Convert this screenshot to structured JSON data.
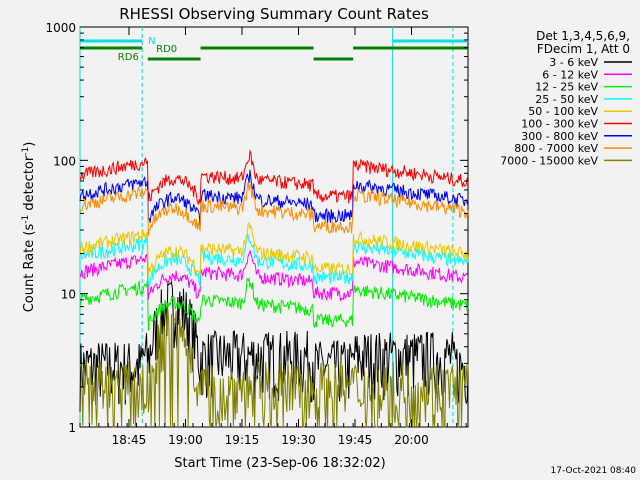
{
  "chart_data": {
    "type": "line",
    "title": "RHESSI Observing Summary Count Rates",
    "xlabel": "Start Time (23-Sep-06 18:32:02)",
    "ylabel_main": "Count Rate (s",
    "ylabel_sup1": "-1",
    "ylabel_mid": " detector",
    "ylabel_sup2": "-1",
    "ylabel_end": ")",
    "yscale": "log",
    "ylim": [
      1,
      1000
    ],
    "xlim_minutes": [
      0,
      103
    ],
    "xticks": [
      {
        "label": "18:45",
        "t": 13
      },
      {
        "label": "19:00",
        "t": 28
      },
      {
        "label": "19:15",
        "t": 43
      },
      {
        "label": "19:30",
        "t": 58
      },
      {
        "label": "19:45",
        "t": 73
      },
      {
        "label": "20:00",
        "t": 88
      }
    ],
    "yticks": [
      {
        "label": "1",
        "v": 1
      },
      {
        "label": "10",
        "v": 10
      },
      {
        "label": "100",
        "v": 100
      },
      {
        "label": "1000",
        "v": 1000
      }
    ],
    "legend_header": [
      "Det 1,3,4,5,6,9,",
      "FDecim 1, Att 0"
    ],
    "legend_position": "right",
    "series": [
      {
        "name": "3 - 6 keV",
        "color": "#000000",
        "base": 3.4
      },
      {
        "name": "6 - 12 keV",
        "color": "#ff00ff",
        "base": 14.5
      },
      {
        "name": "12 - 25 keV",
        "color": "#00ee00",
        "base": 9.0
      },
      {
        "name": "25 - 50 keV",
        "color": "#00ffff",
        "base": 19.0
      },
      {
        "name": "50 - 100 keV",
        "color": "#e8c800",
        "base": 22.0
      },
      {
        "name": "100 - 300 keV",
        "color": "#ff0000",
        "base": 77.0
      },
      {
        "name": "300 - 800 keV",
        "color": "#0000ff",
        "base": 55.0
      },
      {
        "name": "800 - 7000 keV",
        "color": "#ff8c00",
        "base": 46.0
      },
      {
        "name": "7000 - 15000 keV",
        "color": "#808000",
        "base": 2.2
      }
    ],
    "eclipse_intervals": [
      [
        0,
        16.5
      ],
      [
        62,
        72.5
      ],
      [
        99,
        103
      ]
    ],
    "flag_segments": [
      {
        "label": "N",
        "color": "#00e0e0",
        "ranges": [
          [
            0,
            16.5
          ],
          [
            83,
            103
          ]
        ],
        "level": 1
      },
      {
        "label": "RD0",
        "color": "#008000",
        "ranges": [
          [
            0,
            16.5
          ],
          [
            32,
            62
          ],
          [
            72.5,
            103
          ]
        ],
        "level": 2
      },
      {
        "label": "RD6",
        "color": "#008000",
        "ranges": [
          [
            18,
            32
          ],
          [
            62,
            72.5
          ]
        ],
        "level": 3
      }
    ],
    "vlines": [
      {
        "t": 0,
        "style": "solid"
      },
      {
        "t": 16.5,
        "style": "dashed"
      },
      {
        "t": 83,
        "style": "solid"
      },
      {
        "t": 99,
        "style": "dashed"
      }
    ],
    "flare_peak_minute": 45
  },
  "footer": {
    "date": "17-Oct-2021 08:40"
  }
}
